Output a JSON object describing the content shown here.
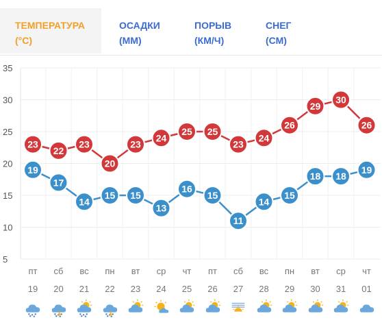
{
  "tabs": [
    {
      "line1": "ТЕМПЕРАТУРА",
      "line2": "(°C)"
    },
    {
      "line1": "ОСАДКИ",
      "line2": "(ММ)"
    },
    {
      "line1": "ПОРЫВ",
      "line2": "(КМ/Ч)"
    },
    {
      "line1": "СНЕГ",
      "line2": "(СМ)"
    }
  ],
  "colors": {
    "max": "#d2373a",
    "min": "#3b90cc",
    "active_tab": "#f0a028",
    "tab": "#3b6ccd"
  },
  "chart_data": {
    "type": "line",
    "ylim": [
      5,
      35
    ],
    "yticks": [
      5,
      10,
      15,
      20,
      25,
      30,
      35
    ],
    "days": [
      "пт",
      "сб",
      "вс",
      "пн",
      "вт",
      "ср",
      "чт",
      "пт",
      "сб",
      "вс",
      "пн",
      "вт",
      "ср",
      "чт"
    ],
    "dates": [
      "19",
      "20",
      "21",
      "22",
      "23",
      "24",
      "25",
      "26",
      "27",
      "28",
      "29",
      "30",
      "31",
      "01"
    ],
    "series": [
      {
        "values": [
          23,
          22,
          23,
          20,
          23,
          24,
          25,
          25,
          23,
          24,
          26,
          29,
          30,
          26
        ]
      },
      {
        "values": [
          19,
          17,
          14,
          15,
          15,
          13,
          16,
          15,
          11,
          14,
          15,
          18,
          18,
          19
        ]
      }
    ],
    "weather_icons": [
      "rain-cloud-icon",
      "storm-cloud-icon",
      "sun-rain-cloud-icon",
      "storm-cloud-icon",
      "partly-cloudy-icon",
      "sunny-cloud-icon",
      "partly-cloudy-icon",
      "partly-cloudy-icon",
      "fog-sun-icon",
      "partly-cloudy-icon",
      "partly-cloudy-icon",
      "partly-cloudy-icon",
      "partly-cloudy-icon",
      "cloud-icon"
    ]
  }
}
